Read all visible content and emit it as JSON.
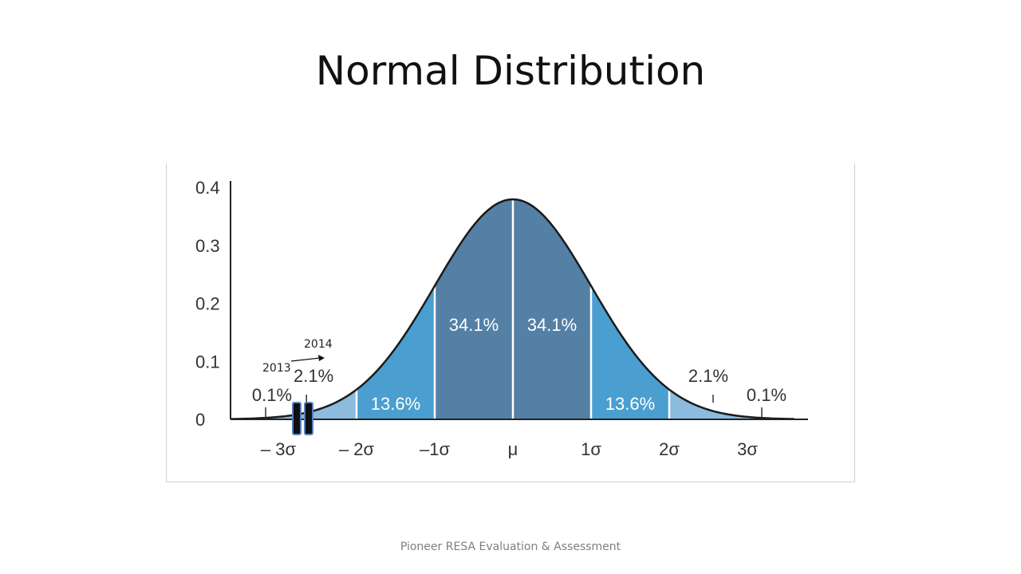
{
  "slide": {
    "title": "Normal Distribution",
    "footer": "Pioneer RESA Evaluation & Assessment"
  },
  "chart_data": {
    "type": "area",
    "title": "",
    "xlabel": "",
    "ylabel": "",
    "xlim": [
      -3.4,
      3.7
    ],
    "ylim": [
      0,
      0.4
    ],
    "grid": false,
    "y_ticks": [
      {
        "value": 0,
        "label": "0"
      },
      {
        "value": 0.1,
        "label": "0.1"
      },
      {
        "value": 0.2,
        "label": "0.2"
      },
      {
        "value": 0.3,
        "label": "0.3"
      },
      {
        "value": 0.4,
        "label": "0.4"
      }
    ],
    "x_ticks": [
      {
        "value": -3,
        "label": "– 3σ"
      },
      {
        "value": -2,
        "label": "– 2σ"
      },
      {
        "value": -1,
        "label": "–1σ"
      },
      {
        "value": 0,
        "label": "μ"
      },
      {
        "value": 1,
        "label": "1σ"
      },
      {
        "value": 2,
        "label": "2σ"
      },
      {
        "value": 3,
        "label": "3σ"
      }
    ],
    "curve": {
      "mean": 0,
      "sd": 1
    },
    "regions": [
      {
        "from": -3.0,
        "to": -2.0,
        "label": "2.1%",
        "color": "#8bbcde"
      },
      {
        "from": -2.0,
        "to": -1.0,
        "label": "13.6%",
        "color": "#4a9fd0"
      },
      {
        "from": -1.0,
        "to": 0.0,
        "label": "34.1%",
        "color": "#5480a6"
      },
      {
        "from": 0.0,
        "to": 1.0,
        "label": "34.1%",
        "color": "#5480a6"
      },
      {
        "from": 1.0,
        "to": 2.0,
        "label": "13.6%",
        "color": "#4a9fd0"
      },
      {
        "from": 2.0,
        "to": 3.0,
        "label": "2.1%",
        "color": "#8bbcde"
      }
    ],
    "tail_labels": [
      {
        "side": "left",
        "label": "0.1%"
      },
      {
        "side": "right",
        "label": "0.1%"
      }
    ],
    "markers": [
      {
        "x": -2.7,
        "label": "2013"
      },
      {
        "x": -2.55,
        "label": "2014"
      }
    ]
  }
}
